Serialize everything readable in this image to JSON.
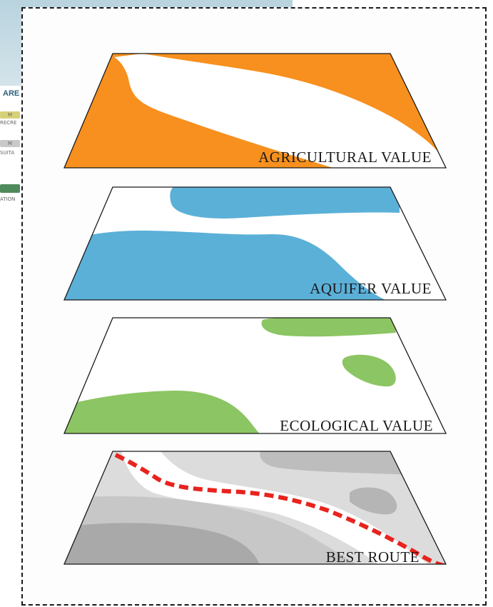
{
  "background_fragment": {
    "heading": "ARE",
    "rows": [
      {
        "chip": "M",
        "text": "RECRE"
      },
      {
        "chip": "M",
        "text": "SUITA"
      },
      {
        "chip": "",
        "text": "ATION"
      }
    ]
  },
  "layers": [
    {
      "label": "AGRICULTURAL VALUE",
      "color": "#f7901e"
    },
    {
      "label": "AQUIFER VALUE",
      "color": "#5bb0d8"
    },
    {
      "label": "ECOLOGICAL VALUE",
      "color": "#8cc563"
    },
    {
      "label": "BEST ROUTE",
      "color": "#b5b5b5",
      "route_color": "#e8231e"
    }
  ]
}
